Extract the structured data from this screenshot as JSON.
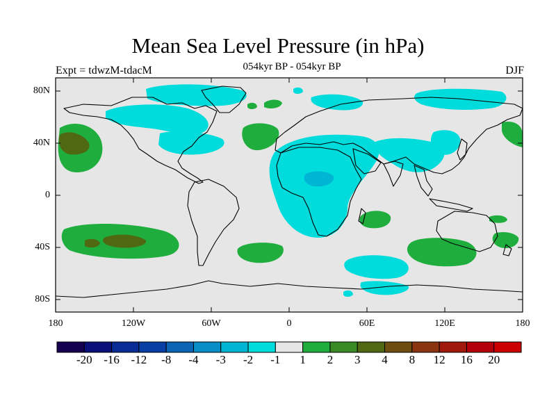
{
  "title": "Mean Sea Level Pressure (in hPa)",
  "subtitle": "054kyr BP - 054kyr BP",
  "experiment_label": "Expt = tdwzM-tdacM",
  "season_label": "DJF",
  "lat_ticks": [
    "80N",
    "40N",
    "0",
    "40S",
    "80S"
  ],
  "lon_ticks": [
    "180",
    "120W",
    "60W",
    "0",
    "60E",
    "120E",
    "180"
  ],
  "colorbar": {
    "labels": [
      "-20",
      "-16",
      "-12",
      "-8",
      "-4",
      "-3",
      "-2",
      "-1",
      "1",
      "2",
      "3",
      "4",
      "8",
      "12",
      "16",
      "20"
    ],
    "colors": [
      "#160050",
      "#0a0f7a",
      "#082b94",
      "#073fa4",
      "#0c64b4",
      "#088ec6",
      "#00b4d4",
      "#00dcdc",
      "#e6e6e6",
      "#1fae3e",
      "#3a8a26",
      "#506812",
      "#6e4e10",
      "#8a3412",
      "#a0190c",
      "#b4000a",
      "#cc0000"
    ]
  },
  "colors": {
    "background": "#e6e6e6",
    "neg_1": "#00dcdc",
    "neg_2": "#00b4d4",
    "pos_1": "#1fae3e",
    "pos_3": "#506812"
  }
}
